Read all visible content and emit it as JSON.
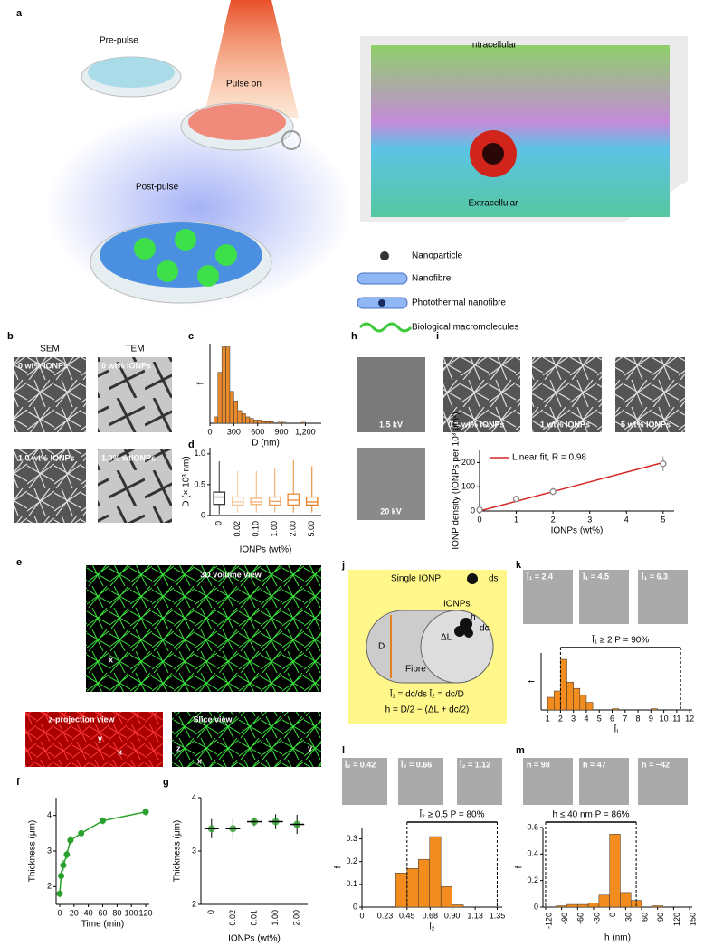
{
  "letters": [
    "a",
    "b",
    "c",
    "d",
    "h",
    "i",
    "e",
    "j",
    "k",
    "f",
    "g",
    "l",
    "m"
  ],
  "figure": {
    "a": {
      "pre": "Pre-pulse",
      "on": "Pulse on",
      "post": "Post-pulse",
      "intra": "Intracellular",
      "extra": "Extracellular",
      "legend": [
        "Nanoparticle",
        "Nanofibre",
        "Photothermal nanofibre",
        "Biological macromolecules"
      ]
    },
    "b": {
      "sem": "SEM",
      "tem": "TEM",
      "images": [
        "0 wt% IONPs",
        "0 wt% IONPs",
        "1.0 wt% IONPs",
        "1.0% wtIONPs"
      ]
    },
    "h": {
      "images": [
        "1.5 kV",
        "20 kV"
      ]
    },
    "i": {
      "images": [
        "0.1 wt% IONPs",
        "1 wt% IONPs",
        "5 wt% IONPs"
      ]
    },
    "e": {
      "views": [
        "3D volume view",
        "z-projection view",
        "Slice view"
      ],
      "axes": [
        "z",
        "y",
        "x"
      ]
    },
    "j": {
      "single": "Single IONP",
      "ds": "ds",
      "ionps": "IONPs",
      "D": "D",
      "fibre": "Fibre",
      "dL": "ΔL",
      "h": "h",
      "dc": "dc",
      "eq1": "l̄₁ = dc/ds   l̄₂ = dc/D",
      "eq2": "h = D/2 − (ΔL + dc/2)"
    },
    "k": [
      "l̄₁ = 2.4",
      "l̄₁ = 4.5",
      "l̄₁ = 6.3"
    ],
    "l": [
      "l̄₂ = 0.42",
      "l̄₂ = 0.66",
      "l̄₂ = 1.12"
    ],
    "m": [
      "h = 98",
      "h = 47",
      "h = −42"
    ]
  },
  "chart_data": [
    {
      "type": "histogram",
      "xlabel": "D (nm)",
      "ylabel": "f",
      "color": "#e8892b",
      "bins": [
        0,
        50,
        100,
        150,
        200,
        250,
        300,
        350,
        400,
        450,
        500,
        550,
        600,
        650,
        700,
        750,
        800,
        850,
        900,
        950,
        1000,
        1050,
        1100,
        1150,
        1200,
        1250,
        1300,
        1350,
        1400
      ],
      "counts": [
        0,
        0.02,
        0.16,
        0.24,
        0.24,
        0.1,
        0.07,
        0.04,
        0.03,
        0.02,
        0.015,
        0.01,
        0.01,
        0.005,
        0.005,
        0.005,
        0,
        0.003,
        0.003,
        0,
        0,
        0,
        0,
        0.003,
        0,
        0,
        0,
        0
      ],
      "xlim": [
        0,
        1400
      ],
      "xticks": [
        0,
        300,
        600,
        900,
        {
          "value": 1200,
          "label": "1,200"
        }
      ],
      "ylim": [
        0,
        0.25
      ]
    },
    {
      "type": "box",
      "xlabel": "IONPs (wt%)",
      "ylabel": "D (× 10³ nm)",
      "categories": [
        "0",
        "0.02",
        "0.10",
        "1.00",
        "2.00",
        "5.00"
      ],
      "boxes": [
        [
          0.02,
          0.18,
          0.3,
          0.38,
          0.88
        ],
        [
          0.05,
          0.17,
          0.22,
          0.3,
          0.72
        ],
        [
          0.05,
          0.18,
          0.22,
          0.28,
          0.72
        ],
        [
          0.05,
          0.17,
          0.23,
          0.3,
          0.76
        ],
        [
          0.05,
          0.17,
          0.25,
          0.35,
          0.9
        ],
        [
          0.05,
          0.17,
          0.22,
          0.3,
          0.8
        ]
      ],
      "colors": [
        "#333333",
        "#f5c89a",
        "#f0b27a",
        "#eda05c",
        "#e98a35",
        "#e67e22"
      ],
      "ylim": [
        0,
        1.1
      ],
      "yticks": [
        0,
        0.5,
        {
          "value": 1,
          "label": "1.0"
        }
      ]
    },
    {
      "type": "scatter",
      "xlabel": "IONPs (wt%)",
      "ylabel": "IONP density (IONPs per 10³ μm²)",
      "color": "#888888",
      "x": [
        0,
        1,
        2,
        5
      ],
      "values": [
        5,
        50,
        80,
        195
      ],
      "errors": [
        3,
        8,
        15,
        30
      ],
      "xlim": [
        0,
        5.3
      ],
      "xticks": [
        0,
        1,
        2,
        3,
        4,
        5
      ],
      "ylim": [
        0,
        250
      ],
      "yticks": [
        0,
        100,
        200
      ],
      "fit": {
        "name": "Linear fit, R = 0.98",
        "color": "#d62728",
        "x": [
          0,
          5
        ],
        "y": [
          0,
          200
        ]
      }
    },
    {
      "type": "line",
      "xlabel": "Time (min)",
      "ylabel": "Thickness (μm)",
      "color": "#2ca02c",
      "x": [
        0,
        2,
        5,
        10,
        15,
        30,
        60,
        120
      ],
      "values": [
        1.8,
        2.3,
        2.6,
        2.9,
        3.3,
        3.5,
        3.85,
        4.1
      ],
      "errors": [
        0.1,
        0.15,
        0.15,
        0.12,
        0.12,
        0.1,
        0.1,
        0.1
      ],
      "xlim": [
        -5,
        125
      ],
      "xticks": [
        0,
        20,
        40,
        60,
        80,
        100,
        120
      ],
      "ylim": [
        1.5,
        4.5
      ],
      "yticks": [
        2,
        3,
        4
      ]
    },
    {
      "type": "dot",
      "xlabel": "IONPs (wt%)",
      "ylabel": "Thickness (μm)",
      "color": "#2ca02c",
      "categories": [
        "0",
        "0.02",
        "0.01",
        "1.00",
        "2.00"
      ],
      "values": [
        3.42,
        3.42,
        3.55,
        3.55,
        3.5
      ],
      "errors": [
        0.18,
        0.2,
        0.08,
        0.14,
        0.18
      ],
      "ylim": [
        2,
        4
      ],
      "yticks": [
        2,
        3,
        4
      ]
    },
    {
      "type": "histogram",
      "xlabel": "l̄₁",
      "ylabel": "f",
      "color": "#f28c1e",
      "bins": [
        1,
        1.5,
        2,
        2.5,
        3,
        3.5,
        4,
        4.5,
        5,
        5.5,
        6,
        6.5,
        7,
        7.5,
        8,
        8.5,
        9,
        9.5,
        10,
        10.5,
        11,
        11.5,
        12
      ],
      "counts": [
        0.1,
        0.15,
        0.4,
        0.22,
        0.17,
        0.12,
        0.06,
        0,
        0,
        0,
        0.01,
        0,
        0,
        0,
        0,
        0,
        0.01,
        0,
        0,
        0,
        0,
        0
      ],
      "xlim": [
        0.5,
        12.2
      ],
      "xticks": [
        1,
        2,
        3,
        4,
        5,
        6,
        7,
        8,
        9,
        10,
        11,
        12
      ],
      "ylim": [
        0,
        0.45
      ],
      "range": [
        2,
        11.3
      ],
      "annotation": "l̄₁ ≥ 2   P = 90%"
    },
    {
      "type": "histogram",
      "xlabel": "l̄₂",
      "ylabel": "f",
      "color": "#f28c1e",
      "bins": [
        0.3375,
        0.45,
        0.5625,
        0.675,
        0.7875,
        0.9,
        1.0125
      ],
      "counts": [
        0.15,
        0.17,
        0.21,
        0.31,
        0.09,
        0.01
      ],
      "xlim": [
        0,
        1.4
      ],
      "xticks": [
        0,
        0.23,
        0.45,
        0.68,
        {
          "value": 0.9,
          "label": "0.90"
        },
        1.13,
        1.35
      ],
      "ylim": [
        0,
        0.35
      ],
      "yticks": [
        0,
        0.1,
        0.2,
        0.3
      ],
      "range": [
        0.45,
        1.35
      ],
      "annotation": "l̄₂ ≥ 0.5   P = 80%"
    },
    {
      "type": "histogram",
      "xlabel": "h (nm)",
      "ylabel": "f",
      "color": "#f28c1e",
      "bins": [
        -100,
        -80,
        -60,
        -40,
        -20,
        0,
        20,
        40,
        60,
        80,
        100,
        120
      ],
      "counts": [
        0.01,
        0.02,
        0.02,
        0.03,
        0.09,
        0.55,
        0.11,
        0.05,
        0,
        0.01,
        0
      ],
      "xlim": [
        -125,
        155
      ],
      "xticks": [
        -120,
        -90,
        -60,
        -30,
        0,
        30,
        60,
        90,
        120,
        150
      ],
      "ylim": [
        0,
        0.6
      ],
      "yticks": [
        0,
        0.2,
        0.4,
        0.6
      ],
      "range": [
        -120,
        50
      ],
      "annotation": "h ≤ 40 nm   P = 86%"
    }
  ]
}
